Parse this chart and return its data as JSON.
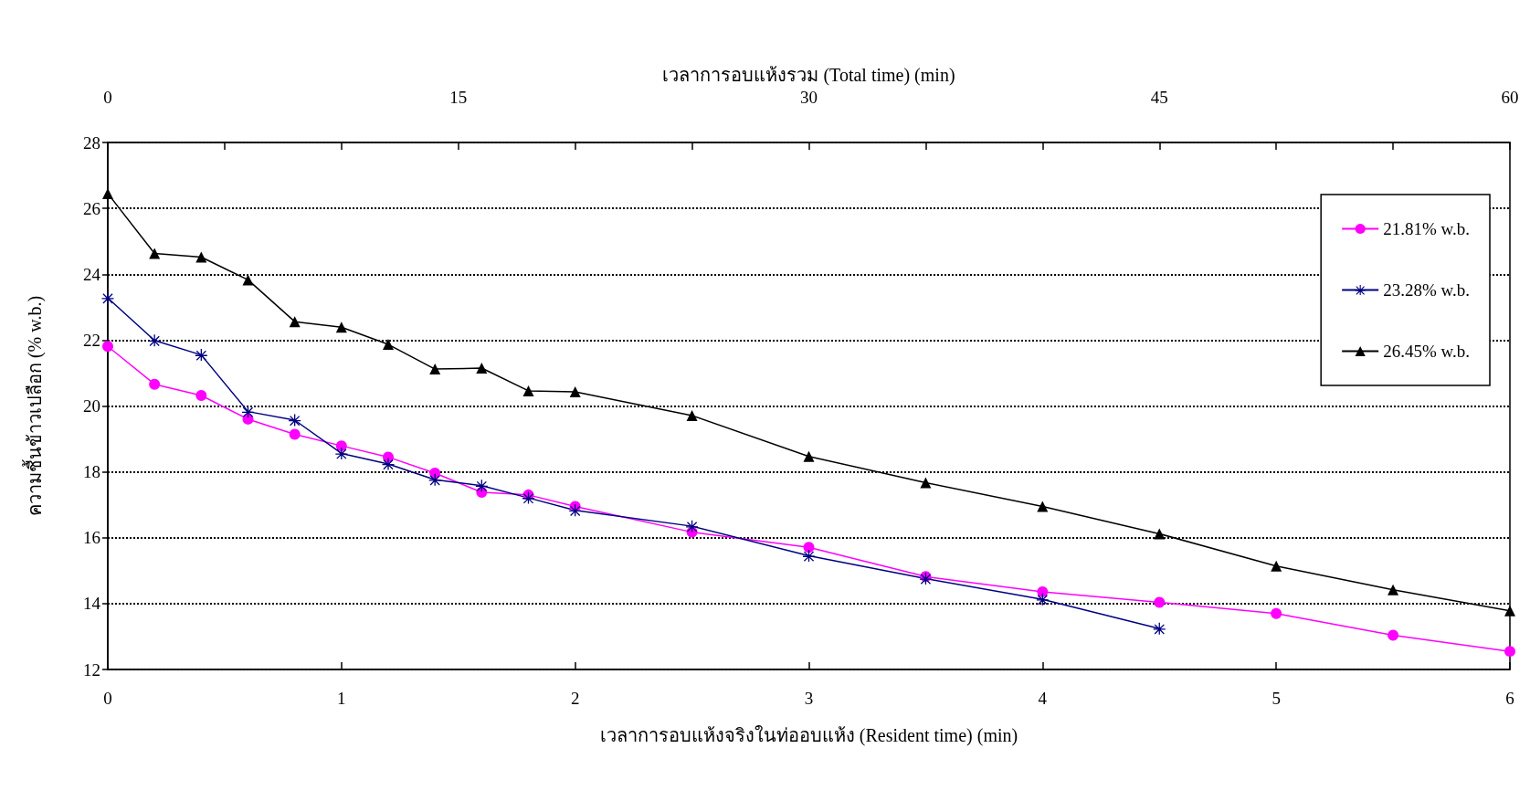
{
  "chart_data": {
    "type": "line",
    "xlabel": "เวลาการอบแห้งจริงในท่ออบแห้ง (Resident time) (min)",
    "x2label": "เวลาการอบแห้งรวม (Total time) (min)",
    "ylabel": "ความชื้นข้าวเปลือก (% w.b.)",
    "xlim": [
      0,
      6
    ],
    "xticks": [
      0,
      1,
      2,
      3,
      4,
      5,
      6
    ],
    "x2lim": [
      0,
      60
    ],
    "x2ticks": [
      0,
      {
        "value": 5,
        "label": null
      },
      {
        "value": 10,
        "label": null
      },
      15,
      {
        "value": 20,
        "label": null
      },
      {
        "value": 25,
        "label": null
      },
      30,
      {
        "value": 35,
        "label": null
      },
      {
        "value": 40,
        "label": null
      },
      45,
      {
        "value": 50,
        "label": null
      },
      {
        "value": 55,
        "label": null
      },
      60
    ],
    "ylim": [
      12,
      28
    ],
    "yticks": [
      12,
      14,
      16,
      18,
      20,
      22,
      24,
      26,
      28
    ],
    "grid": "y",
    "legend": "top right",
    "line_style": "solid",
    "series": [
      {
        "name": "21.81% w.b.",
        "color": "#ff00ff",
        "marker": "circle",
        "x": [
          0,
          0.2,
          0.4,
          0.6,
          0.8,
          1,
          1.2,
          1.4,
          1.6,
          1.8,
          2,
          2.5,
          3,
          3.5,
          4,
          4.5,
          5,
          5.5,
          6
        ],
        "values": [
          21.81,
          20.66,
          20.32,
          19.6,
          19.14,
          18.79,
          18.45,
          17.96,
          17.38,
          17.3,
          16.95,
          16.17,
          15.71,
          14.82,
          14.36,
          14.04,
          13.7,
          13.04,
          12.55
        ]
      },
      {
        "name": "23.28% w.b.",
        "color": "#000080",
        "marker": "cross",
        "x": [
          0,
          0.2,
          0.4,
          0.6,
          0.8,
          1,
          1.2,
          1.4,
          1.6,
          1.8,
          2,
          2.5,
          3,
          3.5,
          4,
          4.5
        ],
        "values": [
          23.28,
          21.99,
          21.55,
          19.83,
          19.57,
          18.56,
          18.24,
          17.76,
          17.58,
          17.21,
          16.83,
          16.35,
          15.45,
          14.76,
          14.13,
          13.24
        ]
      },
      {
        "name": "26.45% w.b.",
        "color": "#000000",
        "marker": "triangle",
        "x": [
          0,
          0.2,
          0.4,
          0.6,
          0.8,
          1,
          1.2,
          1.4,
          1.6,
          1.8,
          2,
          2.5,
          3,
          3.5,
          4,
          4.5,
          5,
          5.5,
          6
        ],
        "values": [
          26.45,
          24.63,
          24.52,
          23.83,
          22.56,
          22.39,
          21.87,
          21.12,
          21.15,
          20.46,
          20.43,
          19.71,
          18.47,
          17.67,
          16.95,
          16.12,
          15.14,
          14.42,
          13.78
        ]
      }
    ]
  }
}
